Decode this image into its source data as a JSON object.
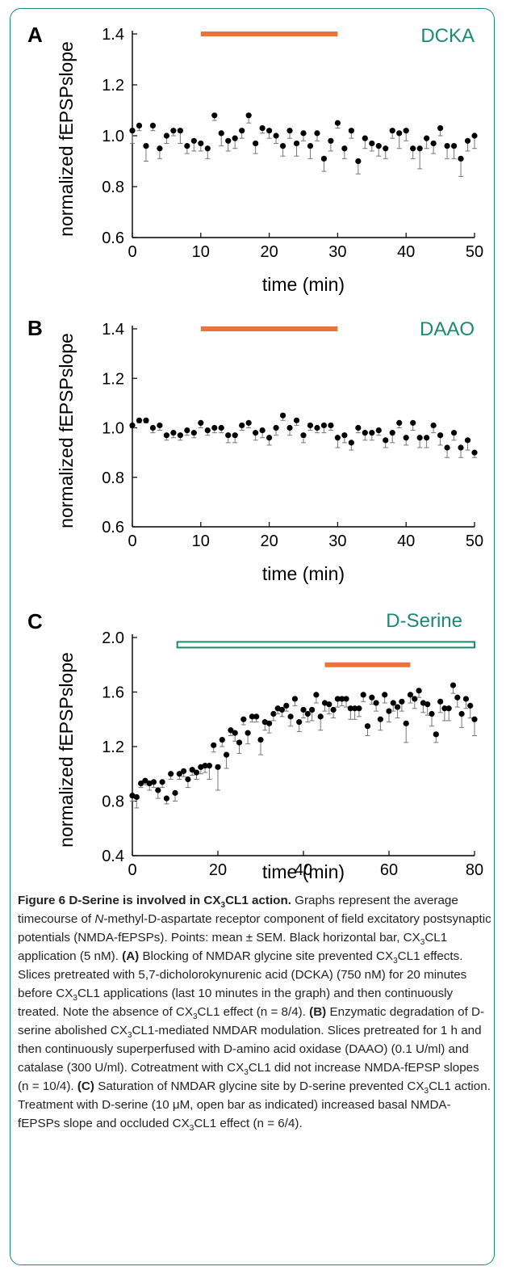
{
  "chart_data": [
    {
      "panel_label": "A",
      "type": "scatter",
      "annotation": "DCKA",
      "xlabel": "time (min)",
      "ylabel": "normalized fEPSPslope",
      "xlim": [
        0,
        50
      ],
      "ylim": [
        0.6,
        1.4
      ],
      "xticks": [
        "0",
        "10",
        "20",
        "30",
        "40",
        "50"
      ],
      "yticks": [
        "0.6",
        "0.8",
        "1.0",
        "1.2",
        "1.4"
      ],
      "application_bar": {
        "x": [
          10,
          30
        ],
        "y": 1.4,
        "color": "#e8743b"
      },
      "x": [
        0,
        1,
        2,
        3,
        4,
        5,
        6,
        7,
        8,
        9,
        10,
        11,
        12,
        13,
        14,
        15,
        16,
        17,
        18,
        19,
        20,
        21,
        22,
        23,
        24,
        25,
        26,
        27,
        28,
        29,
        30,
        31,
        32,
        33,
        34,
        35,
        36,
        37,
        38,
        39,
        40,
        41,
        42,
        43,
        44,
        45,
        46,
        47,
        48,
        49,
        50
      ],
      "y": [
        1.02,
        1.04,
        0.96,
        1.04,
        0.95,
        1.0,
        1.02,
        1.02,
        0.96,
        0.98,
        0.97,
        0.95,
        1.08,
        1.01,
        0.98,
        0.99,
        1.02,
        1.08,
        0.97,
        1.03,
        1.02,
        1.0,
        0.96,
        1.02,
        0.97,
        1.01,
        0.96,
        1.01,
        0.91,
        0.98,
        1.05,
        0.95,
        1.02,
        0.9,
        0.99,
        0.97,
        0.96,
        0.95,
        1.02,
        1.01,
        1.02,
        0.95,
        0.95,
        0.99,
        0.97,
        1.03,
        0.96,
        0.96,
        0.91,
        0.98,
        1.0
      ],
      "sem": [
        0.05,
        0.02,
        0.06,
        0.02,
        0.04,
        0.03,
        0.02,
        0.05,
        0.03,
        0.04,
        0.03,
        0.04,
        0.02,
        0.05,
        0.04,
        0.04,
        0.03,
        0.03,
        0.04,
        0.02,
        0.03,
        0.03,
        0.04,
        0.03,
        0.05,
        0.03,
        0.05,
        0.03,
        0.05,
        0.04,
        0.02,
        0.04,
        0.03,
        0.05,
        0.04,
        0.03,
        0.04,
        0.04,
        0.03,
        0.06,
        0.04,
        0.04,
        0.08,
        0.04,
        0.04,
        0.03,
        0.05,
        0.05,
        0.07,
        0.04,
        0.05
      ]
    },
    {
      "panel_label": "B",
      "type": "scatter",
      "annotation": "DAAO",
      "xlabel": "time (min)",
      "ylabel": "normalized fEPSPslope",
      "xlim": [
        0,
        50
      ],
      "ylim": [
        0.6,
        1.4
      ],
      "xticks": [
        "0",
        "10",
        "20",
        "30",
        "40",
        "50"
      ],
      "yticks": [
        "0.6",
        "0.8",
        "1.0",
        "1.2",
        "1.4"
      ],
      "application_bar": {
        "x": [
          10,
          30
        ],
        "y": 1.4,
        "color": "#e8743b"
      },
      "x": [
        0,
        1,
        2,
        3,
        4,
        5,
        6,
        7,
        8,
        9,
        10,
        11,
        12,
        13,
        14,
        15,
        16,
        17,
        18,
        19,
        20,
        21,
        22,
        23,
        24,
        25,
        26,
        27,
        28,
        29,
        30,
        31,
        32,
        33,
        34,
        35,
        36,
        37,
        38,
        39,
        40,
        41,
        42,
        43,
        44,
        45,
        46,
        47,
        48,
        49,
        50
      ],
      "y": [
        1.01,
        1.03,
        1.03,
        1.0,
        1.01,
        0.97,
        0.98,
        0.97,
        0.99,
        0.98,
        1.02,
        0.99,
        1.0,
        1.0,
        0.97,
        0.97,
        1.01,
        1.02,
        0.98,
        0.99,
        0.96,
        1.0,
        1.05,
        1.0,
        1.03,
        0.97,
        1.01,
        1.0,
        1.01,
        1.01,
        0.96,
        0.97,
        0.94,
        1.0,
        0.98,
        0.98,
        0.99,
        0.95,
        0.98,
        1.02,
        0.96,
        1.02,
        0.96,
        0.96,
        1.01,
        0.97,
        0.92,
        0.98,
        0.92,
        0.95,
        0.9
      ],
      "sem": [
        0.01,
        0.01,
        0.01,
        0.02,
        0.02,
        0.02,
        0.02,
        0.02,
        0.02,
        0.02,
        0.02,
        0.02,
        0.02,
        0.02,
        0.03,
        0.03,
        0.02,
        0.02,
        0.03,
        0.03,
        0.03,
        0.03,
        0.02,
        0.03,
        0.02,
        0.03,
        0.02,
        0.02,
        0.03,
        0.02,
        0.04,
        0.03,
        0.03,
        0.02,
        0.03,
        0.03,
        0.02,
        0.03,
        0.04,
        0.02,
        0.03,
        0.03,
        0.04,
        0.04,
        0.03,
        0.04,
        0.04,
        0.03,
        0.04,
        0.04,
        0.02
      ]
    },
    {
      "panel_label": "C",
      "type": "scatter",
      "annotation": "D-Serine",
      "xlabel": "time (min)",
      "ylabel": "normalized fEPSPslope",
      "xlim": [
        0,
        80
      ],
      "ylim": [
        0.4,
        2.0
      ],
      "xticks": [
        "0",
        "20",
        "40",
        "60",
        "80"
      ],
      "yticks": [
        "0.4",
        "0.8",
        "1.2",
        "1.6",
        "2.0"
      ],
      "open_bar": {
        "x": [
          10.5,
          80
        ],
        "y": 1.95,
        "color": "#1b8a6e"
      },
      "application_bar": {
        "x": [
          45,
          65
        ],
        "y": 1.8,
        "color": "#e8743b"
      },
      "x": [
        0,
        1,
        2,
        3,
        4,
        5,
        6,
        7,
        8,
        9,
        10,
        11,
        12,
        13,
        14,
        15,
        16,
        17,
        18,
        19,
        20,
        21,
        22,
        23,
        24,
        25,
        26,
        27,
        28,
        29,
        30,
        31,
        32,
        33,
        34,
        35,
        36,
        37,
        38,
        39,
        40,
        41,
        42,
        43,
        44,
        45,
        46,
        47,
        48,
        49,
        50,
        51,
        52,
        53,
        54,
        55,
        56,
        57,
        58,
        59,
        60,
        61,
        62,
        63,
        64,
        65,
        66,
        67,
        68,
        69,
        70,
        71,
        72,
        73,
        74,
        75,
        76,
        77,
        78,
        79,
        80
      ],
      "y": [
        0.84,
        0.83,
        0.93,
        0.95,
        0.93,
        0.94,
        0.88,
        0.94,
        0.82,
        1.0,
        0.86,
        1.0,
        1.02,
        0.96,
        1.03,
        1.01,
        1.05,
        1.06,
        1.06,
        1.21,
        1.05,
        1.25,
        1.14,
        1.32,
        1.3,
        1.23,
        1.4,
        1.3,
        1.42,
        1.42,
        1.25,
        1.38,
        1.37,
        1.44,
        1.48,
        1.47,
        1.5,
        1.42,
        1.55,
        1.38,
        1.47,
        1.44,
        1.47,
        1.58,
        1.42,
        1.52,
        1.51,
        1.47,
        1.55,
        1.55,
        1.55,
        1.48,
        1.48,
        1.48,
        1.58,
        1.35,
        1.56,
        1.52,
        1.4,
        1.58,
        1.46,
        1.52,
        1.49,
        1.53,
        1.37,
        1.58,
        1.55,
        1.61,
        1.52,
        1.51,
        1.44,
        1.29,
        1.53,
        1.48,
        1.48,
        1.65,
        1.56,
        1.44,
        1.55,
        1.5,
        1.4
      ],
      "sem": [
        0.04,
        0.08,
        0.03,
        0.03,
        0.05,
        0.04,
        0.06,
        0.04,
        0.04,
        0.04,
        0.06,
        0.04,
        0.04,
        0.06,
        0.04,
        0.05,
        0.05,
        0.05,
        0.1,
        0.05,
        0.17,
        0.05,
        0.1,
        0.04,
        0.06,
        0.08,
        0.04,
        0.08,
        0.04,
        0.04,
        0.11,
        0.06,
        0.07,
        0.05,
        0.04,
        0.05,
        0.04,
        0.07,
        0.05,
        0.07,
        0.06,
        0.06,
        0.08,
        0.06,
        0.1,
        0.06,
        0.07,
        0.06,
        0.06,
        0.05,
        0.06,
        0.08,
        0.08,
        0.06,
        0.05,
        0.07,
        0.05,
        0.06,
        0.08,
        0.06,
        0.08,
        0.06,
        0.08,
        0.07,
        0.14,
        0.06,
        0.07,
        0.05,
        0.07,
        0.08,
        0.09,
        0.06,
        0.08,
        0.09,
        0.09,
        0.06,
        0.07,
        0.1,
        0.07,
        0.09,
        0.12
      ]
    }
  ],
  "caption": {
    "figure_label": "Figure 6",
    "title_pre": "D-Serine is involved in CX",
    "title_sub": "3",
    "title_post": "CL1 action.",
    "text": [
      {
        "t": " Graphs represent the average timecourse of "
      },
      {
        "t": "N",
        "i": true
      },
      {
        "t": "-methyl-D-aspartate receptor component of field excitatory postsynaptic potentials (NMDA-fEPSPs). Points: mean ± SEM. Black horizontal bar, CX"
      },
      {
        "t": "3",
        "sub": true
      },
      {
        "t": "CL1 application (5 nM). "
      },
      {
        "t": "(A)",
        "b": true
      },
      {
        "t": " Blocking of NMDAR glycine site prevented CX"
      },
      {
        "t": "3",
        "sub": true
      },
      {
        "t": "CL1 effects. Slices pretreated with 5,7-dicholorokynurenic acid (DCKA) (750 nM) for 20 minutes before CX"
      },
      {
        "t": "3",
        "sub": true
      },
      {
        "t": "CL1 applications (last 10 minutes in the graph) and then continuously treated. Note the absence of CX"
      },
      {
        "t": "3",
        "sub": true
      },
      {
        "t": "CL1 effect (n = 8/4). "
      },
      {
        "t": "(B)",
        "b": true
      },
      {
        "t": " Enzymatic degradation of D-serine abolished CX"
      },
      {
        "t": "3",
        "sub": true
      },
      {
        "t": "CL1-mediated NMDAR modulation. Slices pretreated for 1 h and then continuously superperfused with D-amino acid oxidase (DAAO) (0.1 U/ml) and catalase (300 U/ml). Cotreatment with CX"
      },
      {
        "t": "3",
        "sub": true
      },
      {
        "t": "CL1 did not increase NMDA-fEPSP slopes (n = 10/4). "
      },
      {
        "t": "(C)",
        "b": true
      },
      {
        "t": " Saturation of NMDAR glycine site by D-serine prevented CX"
      },
      {
        "t": "3",
        "sub": true
      },
      {
        "t": "CL1 action. Treatment with D-serine (10 μM, open bar as indicated) increased basal NMDA-fEPSPs slope and occluded CX"
      },
      {
        "t": "3",
        "sub": true
      },
      {
        "t": "CL1 effect (n = 6/4)."
      }
    ]
  }
}
